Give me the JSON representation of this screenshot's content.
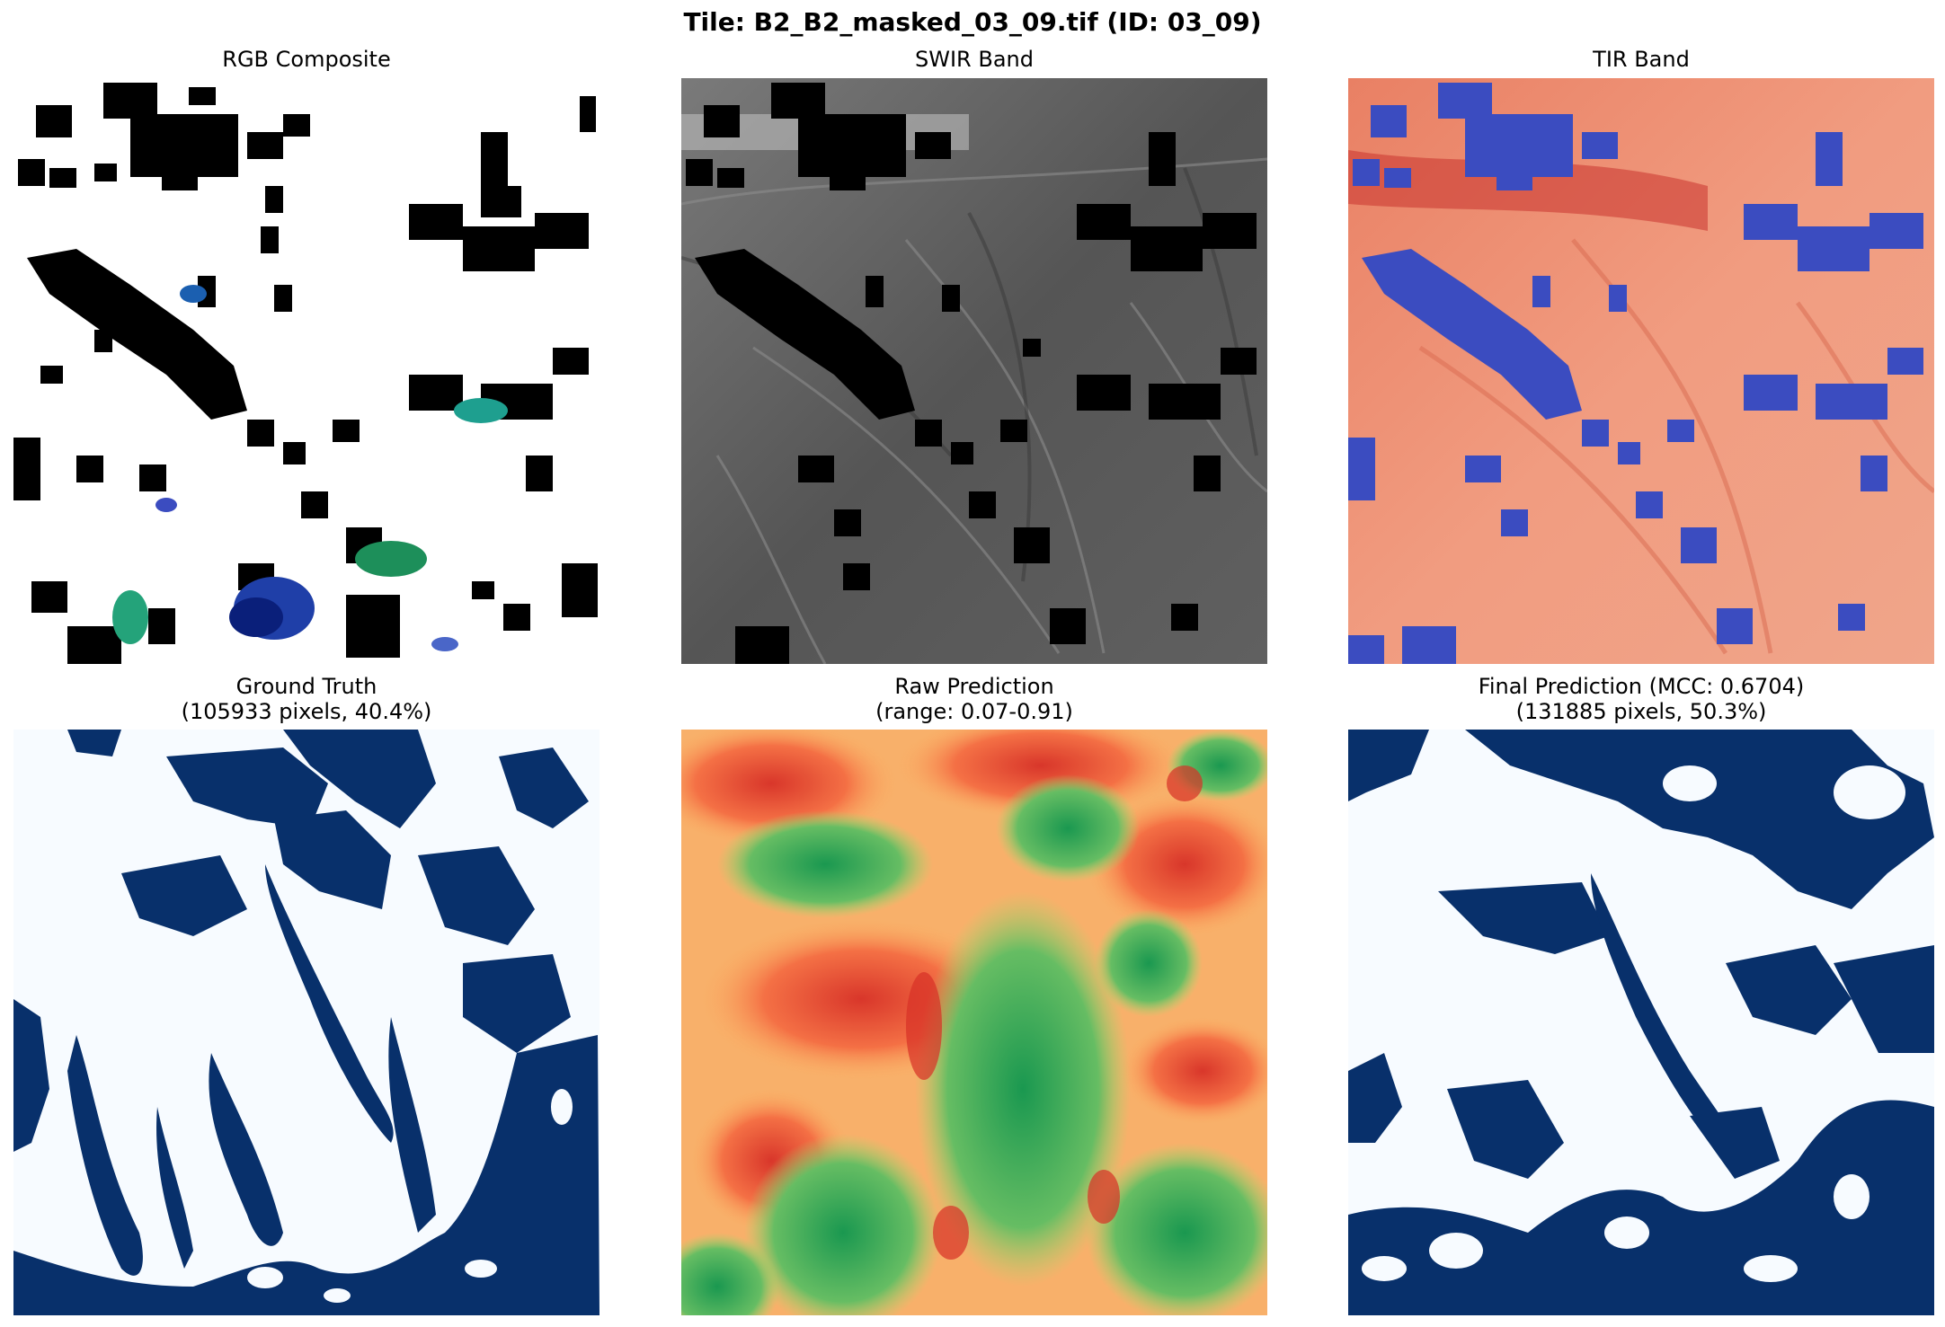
{
  "figure": {
    "title": "Tile: B2_B2_masked_03_09.tif (ID: 03_09)"
  },
  "panels": [
    {
      "key": "rgb",
      "title": "RGB Composite",
      "subtitle": ""
    },
    {
      "key": "swir",
      "title": "SWIR Band",
      "subtitle": ""
    },
    {
      "key": "tir",
      "title": "TIR Band",
      "subtitle": ""
    },
    {
      "key": "gt",
      "title": "Ground Truth",
      "subtitle": "(105933 pixels, 40.4%)"
    },
    {
      "key": "raw",
      "title": "Raw Prediction",
      "subtitle": "(range: 0.07-0.91)"
    },
    {
      "key": "final",
      "title": "Final Prediction (MCC: 0.6704)",
      "subtitle": "(131885 pixels, 50.3%)"
    }
  ],
  "colors": {
    "mask_black": "#000000",
    "swir_gray": "#5c5c5c",
    "tir_red": "#ee8a6c",
    "tir_blue": "#3b4cc0",
    "gt_dark": "#08306b",
    "gt_light": "#f7fbff",
    "raw_red": "#e0603a",
    "raw_orange": "#f6a05c",
    "raw_green": "#34a853",
    "raw_yellow": "#e6f0a0"
  }
}
